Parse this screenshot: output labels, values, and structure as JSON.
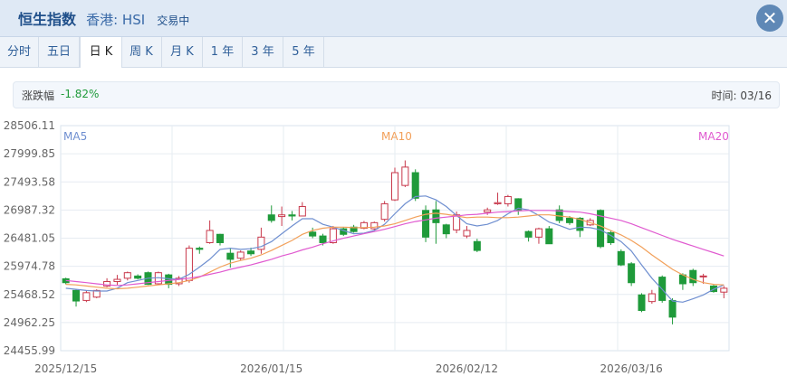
{
  "header": {
    "name": "恒生指数",
    "market": "香港: HSI",
    "status": "交易中"
  },
  "tabs": [
    {
      "label": "分时"
    },
    {
      "label": "五日"
    },
    {
      "label": "日 K"
    },
    {
      "label": "周 K"
    },
    {
      "label": "月 K"
    },
    {
      "label": "1 年"
    },
    {
      "label": "3 年"
    },
    {
      "label": "5 年"
    }
  ],
  "active_tab": "日 K",
  "info": {
    "change_label": "涨跌幅",
    "change_value": "-1.82%",
    "time_label": "时间:",
    "time_value": "03/16"
  },
  "colors": {
    "up": "#c8384b",
    "down": "#1f9a3a",
    "ma5": "#6f8fd0",
    "ma10": "#f2a05a",
    "ma20": "#e05ad0",
    "grid": "#e6ecf2",
    "plot_border": "#d9e3ee"
  },
  "chart_data": {
    "type": "candlestick",
    "y_ticks": [
      "28506.11",
      "27999.85",
      "27493.58",
      "26987.32",
      "26481.05",
      "25974.78",
      "25468.52",
      "24962.25",
      "24455.99"
    ],
    "ylim": [
      24455.99,
      28506.11
    ],
    "x_labels": [
      {
        "index": 0,
        "text": "2025/12/15"
      },
      {
        "index": 20,
        "text": "2026/01/15"
      },
      {
        "index": 39,
        "text": "2026/02/12"
      },
      {
        "index": 55,
        "text": "2026/03/16"
      }
    ],
    "legend": [
      "MA5",
      "MA10",
      "MA20"
    ],
    "candles": [
      [
        25750,
        25680,
        25770,
        25650
      ],
      [
        25540,
        25350,
        25560,
        25250
      ],
      [
        25360,
        25500,
        25540,
        25330
      ],
      [
        25420,
        25540,
        25560,
        25400
      ],
      [
        25620,
        25700,
        25760,
        25600
      ],
      [
        25700,
        25740,
        25820,
        25640
      ],
      [
        25760,
        25860,
        25880,
        25720
      ],
      [
        25800,
        25760,
        25830,
        25740
      ],
      [
        25860,
        25650,
        25880,
        25640
      ],
      [
        25660,
        25860,
        25880,
        25640
      ],
      [
        25820,
        25650,
        25840,
        25580
      ],
      [
        25660,
        25760,
        25800,
        25620
      ],
      [
        25720,
        26300,
        26350,
        25680
      ],
      [
        26300,
        26280,
        26330,
        26200
      ],
      [
        26400,
        26620,
        26800,
        26380
      ],
      [
        26550,
        26400,
        26560,
        26350
      ],
      [
        26210,
        26100,
        26300,
        25950
      ],
      [
        26120,
        26230,
        26260,
        26080
      ],
      [
        26250,
        26200,
        26310,
        26160
      ],
      [
        26280,
        26500,
        26670,
        26200
      ],
      [
        26900,
        26800,
        27070,
        26760
      ],
      [
        26870,
        26900,
        27050,
        26700
      ],
      [
        26900,
        26880,
        26970,
        26800
      ],
      [
        26880,
        27050,
        27130,
        26920
      ],
      [
        26590,
        26520,
        26670,
        26480
      ],
      [
        26520,
        26400,
        26560,
        26350
      ],
      [
        26400,
        26650,
        26700,
        26380
      ],
      [
        26650,
        26550,
        26680,
        26520
      ],
      [
        26680,
        26600,
        26720,
        26580
      ],
      [
        26660,
        26760,
        26790,
        26640
      ],
      [
        26650,
        26760,
        26780,
        26620
      ],
      [
        26820,
        27100,
        27150,
        26780
      ],
      [
        27170,
        27660,
        27750,
        27150
      ],
      [
        27430,
        27760,
        27880,
        27400
      ],
      [
        27660,
        27200,
        27720,
        27150
      ],
      [
        26980,
        26500,
        27070,
        26410
      ],
      [
        26990,
        26760,
        27150,
        26380
      ],
      [
        26720,
        26560,
        26740,
        26480
      ],
      [
        26630,
        26900,
        26960,
        26570
      ],
      [
        26520,
        26620,
        26700,
        26480
      ],
      [
        26420,
        26260,
        26470,
        26230
      ],
      [
        26950,
        26990,
        27030,
        26900
      ],
      [
        27100,
        27120,
        27300,
        27080
      ],
      [
        27100,
        27230,
        27260,
        27050
      ],
      [
        27190,
        26990,
        27200,
        26900
      ],
      [
        26600,
        26500,
        26620,
        26420
      ],
      [
        26500,
        26650,
        26670,
        26380
      ],
      [
        26650,
        26380,
        26700,
        26380
      ],
      [
        26990,
        26800,
        27070,
        26750
      ],
      [
        26840,
        26760,
        26880,
        26720
      ],
      [
        26840,
        26620,
        26860,
        26500
      ],
      [
        26720,
        26800,
        26840,
        26700
      ],
      [
        26980,
        26330,
        27000,
        26300
      ],
      [
        26580,
        26400,
        26620,
        26360
      ],
      [
        26240,
        26000,
        26280,
        25980
      ],
      [
        26020,
        25680,
        26050,
        25620
      ],
      [
        25460,
        25180,
        25490,
        25150
      ],
      [
        25340,
        25480,
        25550,
        25300
      ],
      [
        25780,
        25360,
        25810,
        25320
      ],
      [
        25360,
        25060,
        25400,
        24930
      ],
      [
        25820,
        25660,
        25850,
        25550
      ],
      [
        25900,
        25680,
        25930,
        25620
      ],
      [
        25800,
        25800,
        25840,
        25660
      ],
      [
        25620,
        25520,
        25640,
        25500
      ],
      [
        25510,
        25580,
        25620,
        25400
      ]
    ],
    "ma5": [
      25580,
      25560,
      25540,
      25530,
      25530,
      25580,
      25680,
      25720,
      25760,
      25770,
      25750,
      25740,
      25830,
      25960,
      26100,
      26280,
      26300,
      26280,
      26290,
      26330,
      26420,
      26560,
      26700,
      26830,
      26830,
      26730,
      26680,
      26620,
      26560,
      26570,
      26620,
      26730,
      26920,
      27100,
      27230,
      27240,
      27170,
      27050,
      26890,
      26740,
      26700,
      26730,
      26800,
      26920,
      27020,
      26990,
      26890,
      26770,
      26710,
      26640,
      26680,
      26670,
      26630,
      26530,
      26420,
      26250,
      26000,
      25760,
      25560,
      25350,
      25330,
      25390,
      25460,
      25560,
      25640
    ],
    "ma10": [
      25650,
      25640,
      25620,
      25600,
      25580,
      25570,
      25580,
      25600,
      25620,
      25640,
      25660,
      25680,
      25720,
      25780,
      25870,
      25960,
      26030,
      26080,
      26120,
      26180,
      26260,
      26350,
      26440,
      26550,
      26620,
      26660,
      26680,
      26680,
      26670,
      26670,
      26680,
      26700,
      26740,
      26800,
      26860,
      26910,
      26930,
      26910,
      26880,
      26850,
      26860,
      26860,
      26850,
      26850,
      26860,
      26880,
      26900,
      26900,
      26880,
      26860,
      26820,
      26760,
      26700,
      26620,
      26540,
      26440,
      26320,
      26180,
      26050,
      25920,
      25820,
      25740,
      25680,
      25650,
      25640
    ],
    "ma20": [
      25720,
      25700,
      25680,
      25660,
      25640,
      25630,
      25640,
      25660,
      25680,
      25700,
      25720,
      25740,
      25760,
      25790,
      25830,
      25870,
      25920,
      25960,
      26000,
      26050,
      26100,
      26160,
      26210,
      26270,
      26320,
      26380,
      26430,
      26480,
      26520,
      26560,
      26600,
      26640,
      26690,
      26740,
      26780,
      26810,
      26840,
      26860,
      26880,
      26900,
      26910,
      26930,
      26950,
      26960,
      26970,
      26980,
      26980,
      26980,
      26970,
      26960,
      26950,
      26920,
      26880,
      26840,
      26800,
      26740,
      26670,
      26600,
      26530,
      26460,
      26400,
      26340,
      26280,
      26220,
      26160
    ]
  }
}
